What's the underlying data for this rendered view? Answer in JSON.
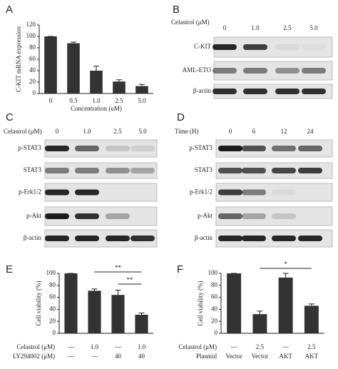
{
  "chart_data": [
    {
      "type": "bar",
      "panel": "A",
      "ylabel": "C-KIT mRNA expression",
      "xlabel": "Concentration (uM)",
      "categories": [
        "0",
        "0.5",
        "1.0",
        "2.5",
        "5.0"
      ],
      "values": [
        100,
        88,
        40,
        21,
        13
      ],
      "errors": [
        0,
        2,
        8,
        3,
        3
      ],
      "color": "#333333",
      "ylim": [
        0,
        120
      ],
      "yticks": [
        0,
        20,
        40,
        60,
        80,
        100,
        120
      ]
    },
    {
      "type": "bar",
      "panel": "E",
      "ylabel": "Cell viability (%)",
      "x_label_rows": [
        {
          "name": "Celastrol (μM)",
          "labels": [
            "—",
            "1.0",
            "—",
            "1.0"
          ]
        },
        {
          "name": "LY294002 (μM)",
          "labels": [
            "—",
            "—",
            "40",
            "40"
          ]
        }
      ],
      "values": [
        100,
        71,
        64,
        31
      ],
      "errors": [
        0,
        3,
        8,
        3
      ],
      "annotations": [
        "**",
        "**"
      ],
      "color": "#333333",
      "ylim": [
        0,
        100
      ],
      "yticks": [
        0,
        20,
        40,
        60,
        80,
        100
      ]
    },
    {
      "type": "bar",
      "panel": "F",
      "ylabel": "Cell viability (%)",
      "x_label_rows": [
        {
          "name": "Celastrol (μM)",
          "labels": [
            "—",
            "2.5",
            "—",
            "2.5"
          ]
        },
        {
          "name": "Plasmid",
          "labels": [
            "Vector",
            "Vector",
            "AKT",
            "AKT"
          ]
        }
      ],
      "values": [
        100,
        32,
        93,
        46
      ],
      "errors": [
        0,
        5,
        7,
        3
      ],
      "annotations": [
        "*"
      ],
      "color": "#333333",
      "ylim": [
        0,
        100
      ],
      "yticks": [
        0,
        20,
        40,
        60,
        80,
        100
      ]
    }
  ],
  "blots": [
    {
      "panel": "B",
      "header": "Celastrol (μM)",
      "lanes": [
        "0",
        "1.0",
        "2.5",
        "5.0"
      ],
      "rows": [
        "C-KIT",
        "AML-ETO",
        "β-actin"
      ]
    },
    {
      "panel": "C",
      "header": "Celastrol (μM)",
      "lanes": [
        "0",
        "1.0",
        "2.5",
        "5.0"
      ],
      "rows": [
        "p-STAT3",
        "STAT3",
        "p-Erk1/2",
        "p-Akt",
        "β-actin"
      ]
    },
    {
      "panel": "D",
      "header": "Time (H)",
      "lanes": [
        "0",
        "6",
        "12",
        "24"
      ],
      "rows": [
        "p-STAT3",
        "STAT3",
        "p-Erk1/2",
        "p-Akt",
        "β-actin"
      ]
    }
  ]
}
